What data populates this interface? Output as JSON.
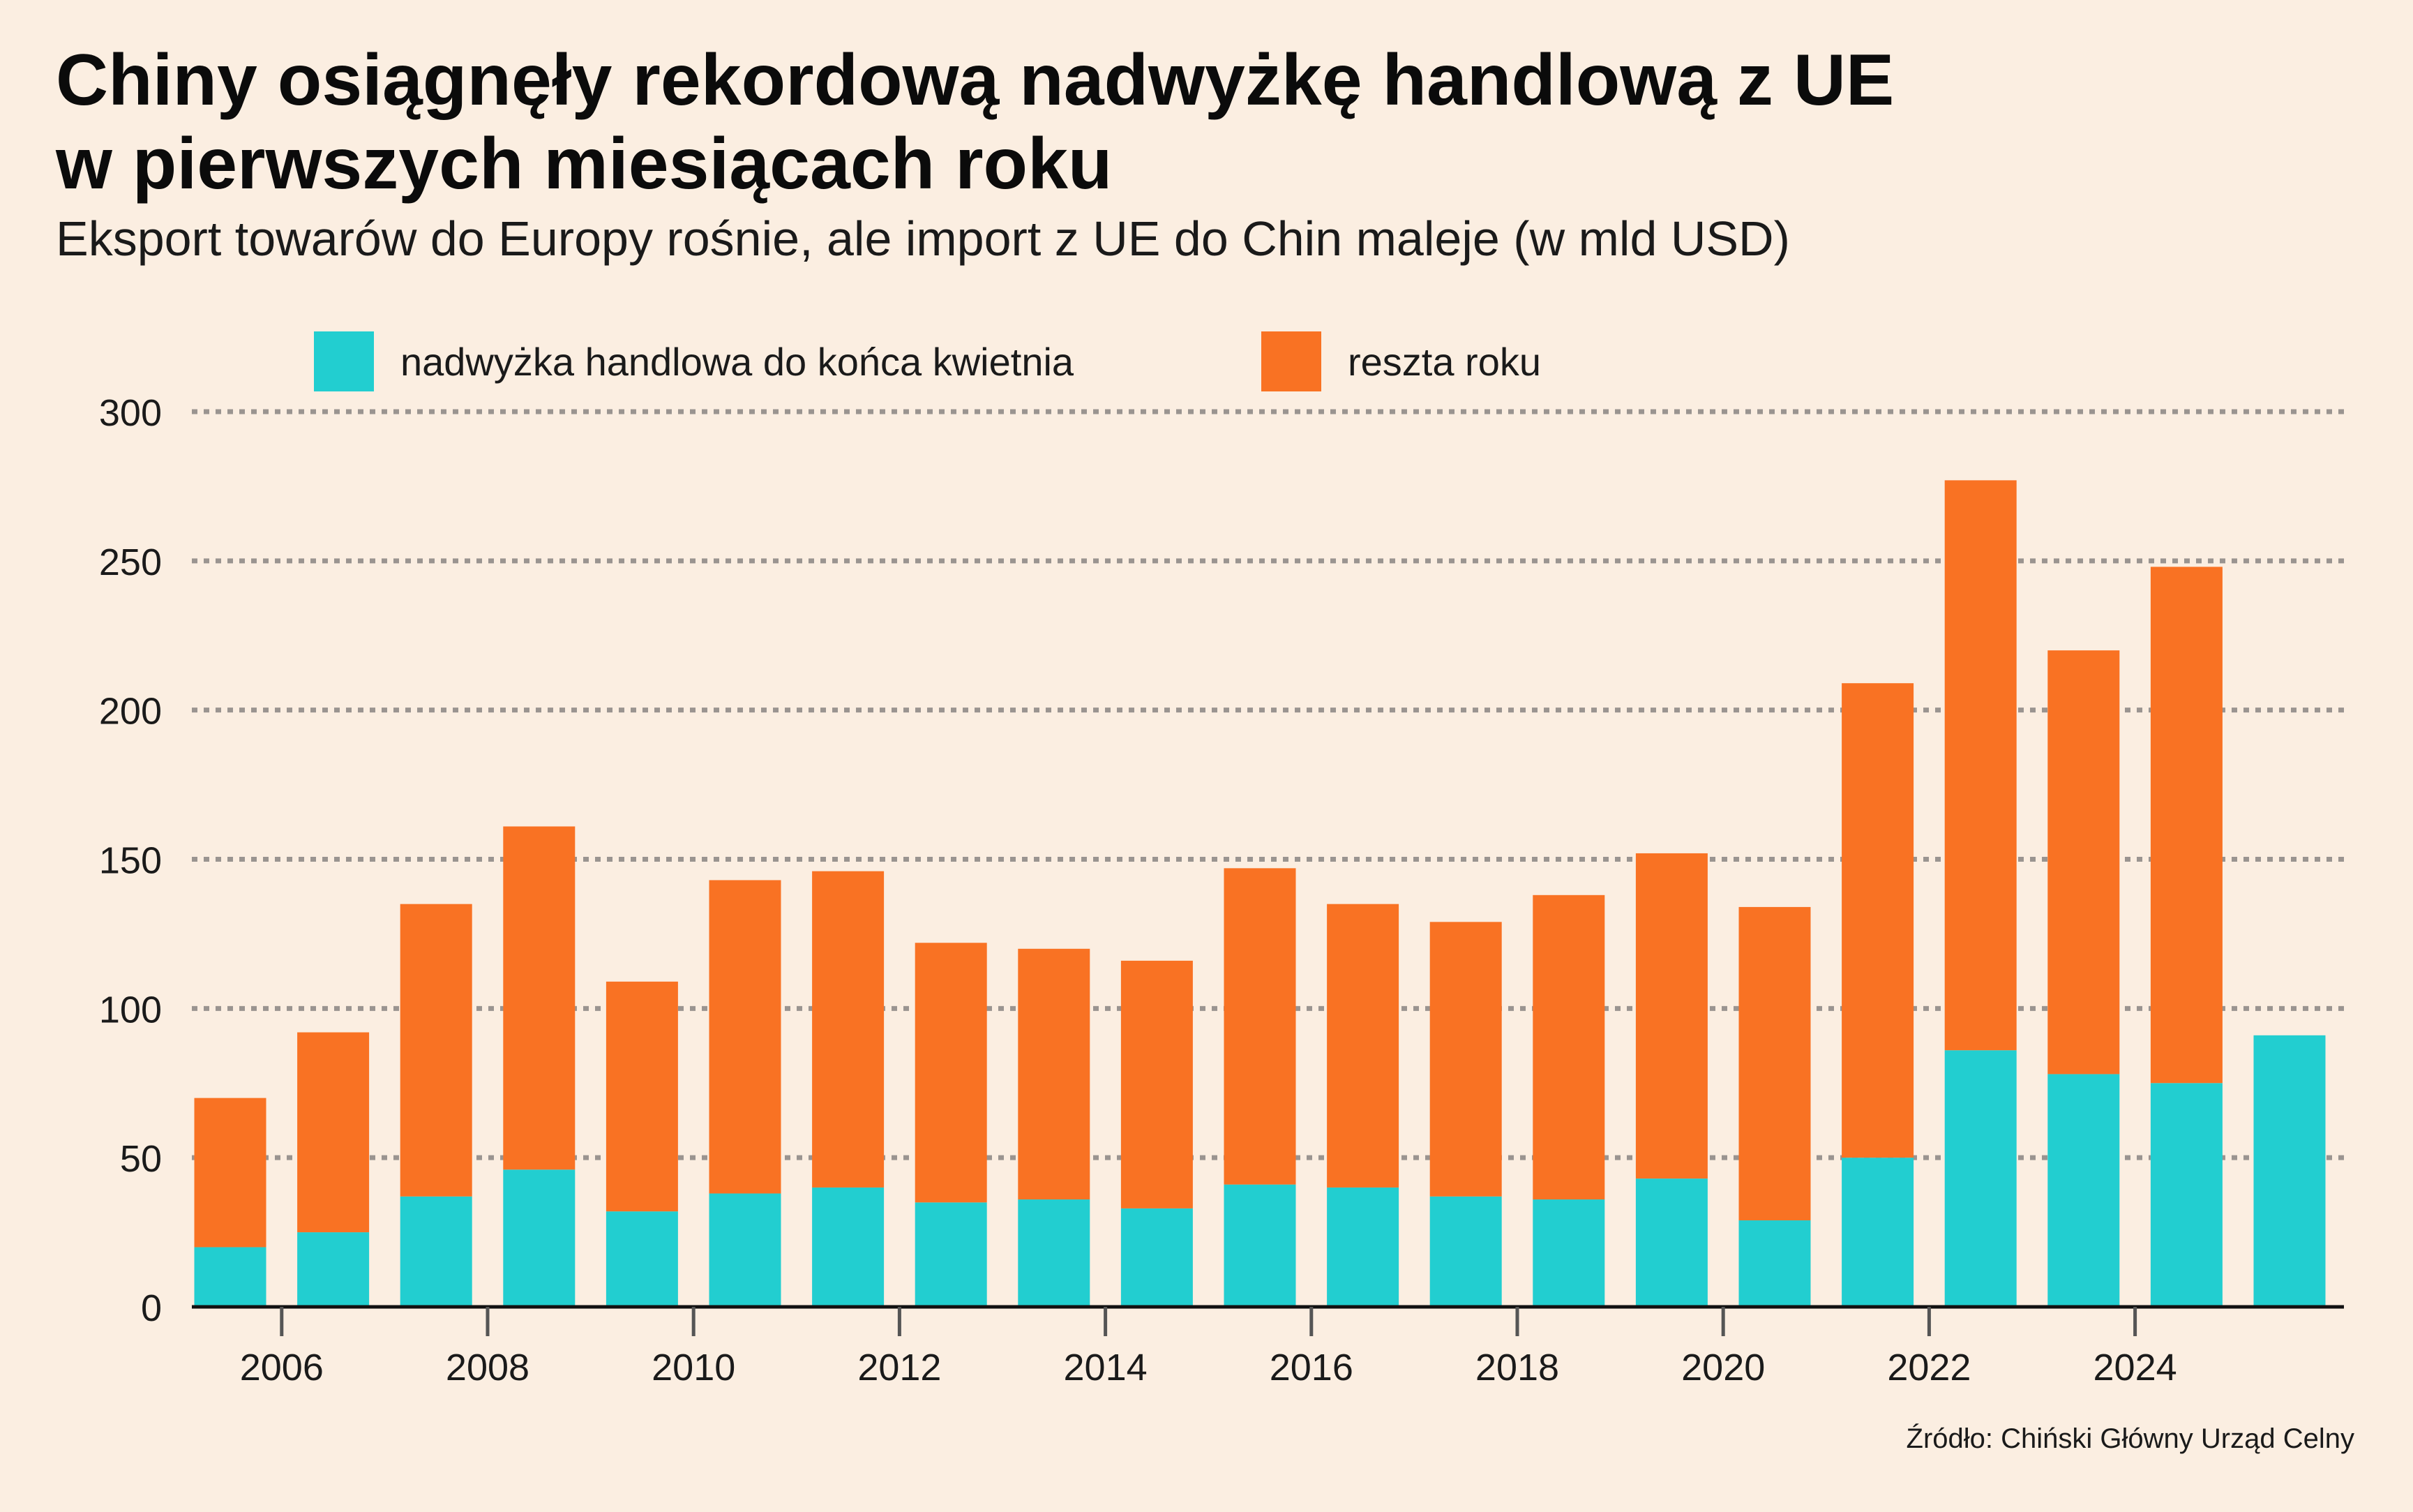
{
  "header": {
    "title_line1": "Chiny osiągnęły rekordową nadwyżkę handlową z UE",
    "title_line2": "w pierwszych miesiącach roku",
    "subtitle": "Eksport towarów do Europy rośnie, ale import z UE do Chin maleje (w mld USD)"
  },
  "legend": {
    "items": [
      {
        "label": "nadwyżka handlowa do końca kwietnia",
        "color": "#22ced0"
      },
      {
        "label": "reszta roku",
        "color": "#f97223"
      }
    ]
  },
  "source": "Źródło: Chiński Główny Urząd Celny",
  "chart_data": {
    "type": "bar",
    "stacked": true,
    "categories": [
      2005,
      2006,
      2007,
      2008,
      2009,
      2010,
      2011,
      2012,
      2013,
      2014,
      2015,
      2016,
      2017,
      2018,
      2019,
      2020,
      2021,
      2022,
      2023,
      2024,
      2025
    ],
    "series": [
      {
        "name": "nadwyżka handlowa do końca kwietnia",
        "color": "#22ced0",
        "values": [
          20,
          25,
          37,
          46,
          32,
          38,
          40,
          35,
          36,
          33,
          41,
          40,
          37,
          36,
          43,
          29,
          50,
          86,
          78,
          75,
          91
        ]
      },
      {
        "name": "reszta roku",
        "color": "#f97223",
        "values": [
          50,
          67,
          98,
          115,
          77,
          105,
          106,
          87,
          84,
          83,
          106,
          95,
          92,
          102,
          109,
          105,
          159,
          191,
          142,
          173,
          0
        ]
      }
    ],
    "totals": [
      70,
      92,
      135,
      161,
      109,
      143,
      146,
      122,
      120,
      116,
      147,
      135,
      129,
      138,
      152,
      134,
      209,
      277,
      220,
      248,
      91
    ],
    "yticks": [
      0,
      50,
      100,
      150,
      200,
      250,
      300
    ],
    "xtick_labels": [
      2006,
      2008,
      2010,
      2012,
      2014,
      2016,
      2018,
      2020,
      2022,
      2024
    ],
    "ylim": [
      0,
      300
    ],
    "grid": "horizontal-dotted",
    "legend_position": "top"
  }
}
